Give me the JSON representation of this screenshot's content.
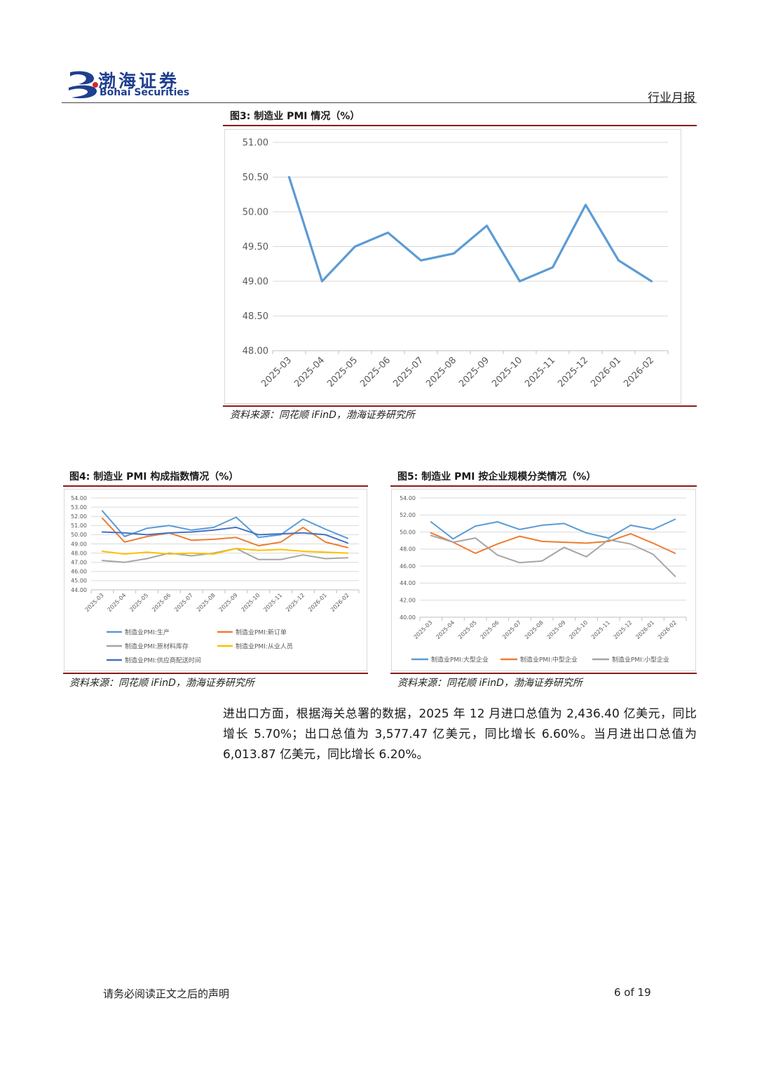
{
  "header": {
    "brand_cn": "渤海证券",
    "brand_en": "Bohai Securities",
    "report_type": "行业月报"
  },
  "colors": {
    "brand_blue": "#1f3f8f",
    "rule_red": "#8b1a1a",
    "line_blue": "#5b9bd5",
    "line_orange": "#ed7d31",
    "line_gray": "#a5a5a5",
    "line_yellow": "#ffc000",
    "line_navy": "#4472c4"
  },
  "figures": {
    "fig3": {
      "title": "图3:  制造业 PMI 情况（%）",
      "source": "资料来源：同花顺 iFinD，渤海证券研究所"
    },
    "fig4": {
      "title": "图4:  制造业 PMI 构成指数情况（%）",
      "source": "资料来源：同花顺 iFinD，渤海证券研究所"
    },
    "fig5": {
      "title": "图5:  制造业 PMI 按企业规模分类情况（%）",
      "source": "资料来源：同花顺 iFinD，渤海证券研究所"
    }
  },
  "chart_data": [
    {
      "type": "line",
      "title": "",
      "categories": [
        "2025-03",
        "2025-04",
        "2025-05",
        "2025-06",
        "2025-07",
        "2025-08",
        "2025-09",
        "2025-10",
        "2025-11",
        "2025-12",
        "2026-01",
        "2026-02"
      ],
      "series": [
        {
          "values": [
            50.5,
            49.0,
            49.5,
            49.7,
            49.3,
            49.4,
            49.8,
            49.0,
            49.2,
            50.1,
            49.3,
            49.0
          ],
          "color": "#5b9bd5"
        }
      ],
      "ylim": [
        48.0,
        51.0
      ],
      "yticks": [
        "48.00",
        "48.50",
        "49.00",
        "49.50",
        "50.00",
        "50.50",
        "51.00"
      ],
      "grid": true
    },
    {
      "type": "line",
      "title": "",
      "categories": [
        "2025-03",
        "2025-04",
        "2025-05",
        "2025-06",
        "2025-07",
        "2025-08",
        "2025-09",
        "2025-10",
        "2025-11",
        "2025-12",
        "2026-01",
        "2026-02"
      ],
      "series": [
        {
          "name": "制造业PMI:生产",
          "values": [
            52.6,
            49.8,
            50.7,
            51.0,
            50.5,
            50.8,
            51.9,
            49.7,
            50.0,
            51.7,
            50.6,
            49.6
          ],
          "color": "#5b9bd5"
        },
        {
          "name": "制造业PMI:新订单",
          "values": [
            51.8,
            49.2,
            49.8,
            50.2,
            49.4,
            49.5,
            49.7,
            48.8,
            49.2,
            50.8,
            49.2,
            48.6
          ],
          "color": "#ed7d31"
        },
        {
          "name": "制造业PMI:原材料库存",
          "values": [
            47.2,
            47.0,
            47.4,
            48.0,
            47.7,
            48.0,
            48.5,
            47.3,
            47.3,
            47.8,
            47.4,
            47.5
          ],
          "color": "#a5a5a5"
        },
        {
          "name": "制造业PMI:从业人员",
          "values": [
            48.2,
            47.9,
            48.1,
            47.9,
            48.0,
            47.9,
            48.5,
            48.3,
            48.4,
            48.2,
            48.1,
            48.0
          ],
          "color": "#ffc000"
        },
        {
          "name": "制造业PMI:供应商配送时间",
          "values": [
            50.3,
            50.2,
            50.0,
            50.2,
            50.3,
            50.5,
            50.8,
            50.0,
            50.1,
            50.2,
            50.0,
            49.1
          ],
          "color": "#4472c4"
        }
      ],
      "ylim": [
        44.0,
        54.0
      ],
      "yticks": [
        "44.00",
        "45.00",
        "46.00",
        "47.00",
        "48.00",
        "49.00",
        "50.00",
        "51.00",
        "52.00",
        "53.00",
        "54.00"
      ],
      "legend": "bottom",
      "grid": true
    },
    {
      "type": "line",
      "title": "",
      "categories": [
        "2025-03",
        "2025-04",
        "2025-05",
        "2025-06",
        "2025-07",
        "2025-08",
        "2025-09",
        "2025-10",
        "2025-11",
        "2025-12",
        "2026-01",
        "2026-02"
      ],
      "series": [
        {
          "name": "制造业PMI:大型企业",
          "values": [
            51.2,
            49.2,
            50.7,
            51.2,
            50.3,
            50.8,
            51.0,
            49.9,
            49.3,
            50.8,
            50.3,
            51.5
          ],
          "color": "#5b9bd5"
        },
        {
          "name": "制造业PMI:中型企业",
          "values": [
            49.9,
            48.8,
            47.5,
            48.6,
            49.5,
            48.9,
            48.8,
            48.7,
            48.9,
            49.8,
            48.7,
            47.5
          ],
          "color": "#ed7d31"
        },
        {
          "name": "制造业PMI:小型企业",
          "values": [
            49.6,
            48.8,
            49.3,
            47.3,
            46.4,
            46.6,
            48.2,
            47.1,
            49.1,
            48.6,
            47.4,
            44.8
          ],
          "color": "#a5a5a5"
        }
      ],
      "ylim": [
        40.0,
        54.0
      ],
      "yticks": [
        "40.00",
        "42.00",
        "44.00",
        "46.00",
        "48.00",
        "50.00",
        "52.00",
        "54.00"
      ],
      "legend": "bottom",
      "grid": true
    }
  ],
  "paragraph": "进出口方面，根据海关总署的数据，2025 年 12 月进口总值为 2,436.40 亿美元，同比增长 5.70%；出口总值为 3,577.47 亿美元，同比增长 6.60%。当月进出口总值为 6,013.87 亿美元，同比增长 6.20%。",
  "footer": {
    "note": "请务必阅读正文之后的声明",
    "page": "6 of 19"
  }
}
